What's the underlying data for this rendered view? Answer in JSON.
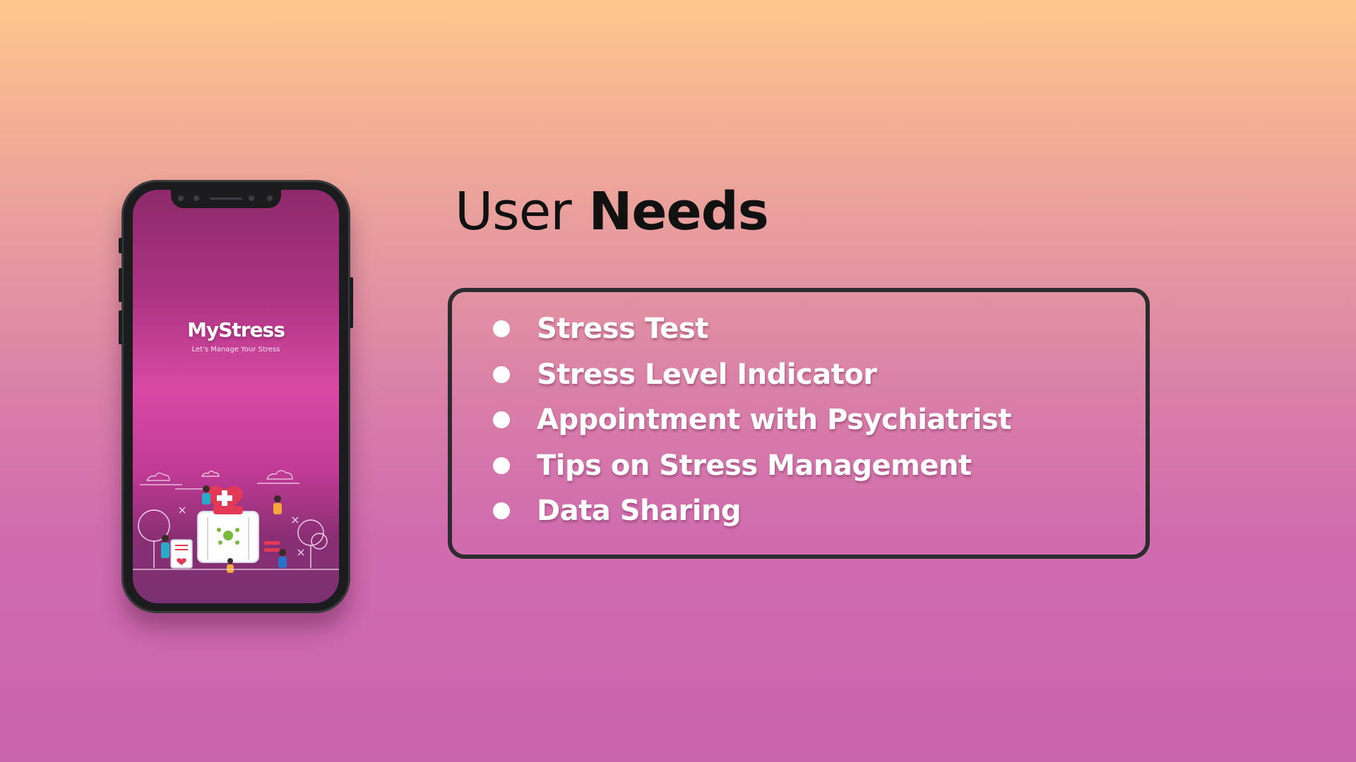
{
  "slide": {
    "heading_light": "User",
    "heading_bold": "Needs"
  },
  "phone": {
    "app_name": "MyStress",
    "tagline": "Let's Manage Your Stress",
    "illustration_icon": "medical-care-illustration"
  },
  "user_needs": [
    {
      "label": "Stress Test"
    },
    {
      "label": "Stress Level Indicator"
    },
    {
      "label": "Appointment with Psychiatrist"
    },
    {
      "label": "Tips on Stress Management"
    },
    {
      "label": "Data Sharing"
    }
  ],
  "colors": {
    "background_top": "#ffc78c",
    "background_bottom": "#c964ae",
    "screen_accent": "#d84aa5",
    "heading_text": "#111111",
    "list_text": "#ffffff",
    "box_border": "#2c2c2e"
  }
}
